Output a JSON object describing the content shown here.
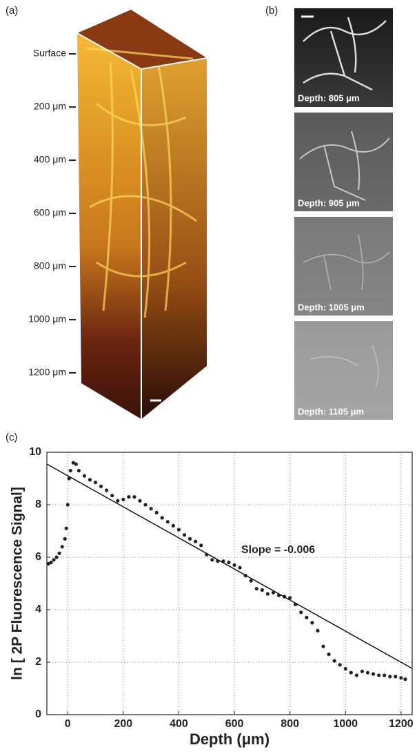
{
  "panel_a": {
    "label": "(a)",
    "depth_labels": [
      "Surface",
      "200 μm",
      "400 μm",
      "600 μm",
      "800 μm",
      "1000 μm",
      "1200 μm"
    ]
  },
  "panel_b": {
    "label": "(b)",
    "captions": [
      "Depth: 805 μm",
      "Depth: 905 μm",
      "Depth: 1005 μm",
      "Depth: 1105 μm"
    ]
  },
  "panel_c": {
    "label": "(c)"
  },
  "chart_data": {
    "type": "scatter",
    "x_label": "Depth (μm)",
    "y_label": "ln [ 2P Fluorescence Signal]",
    "annotation": "Slope = -0.006",
    "color": "#222222",
    "x": [
      -70,
      -60,
      -50,
      -40,
      -30,
      -20,
      -10,
      -5,
      0,
      5,
      10,
      20,
      30,
      40,
      60,
      80,
      100,
      120,
      140,
      160,
      180,
      200,
      220,
      240,
      260,
      280,
      300,
      320,
      340,
      360,
      380,
      400,
      420,
      440,
      460,
      480,
      500,
      520,
      540,
      560,
      580,
      600,
      620,
      640,
      660,
      680,
      700,
      720,
      740,
      760,
      780,
      800,
      820,
      840,
      860,
      880,
      900,
      920,
      940,
      960,
      980,
      1000,
      1020,
      1040,
      1060,
      1080,
      1100,
      1120,
      1140,
      1160,
      1180,
      1200,
      1215
    ],
    "values": [
      5.75,
      5.8,
      5.9,
      6.0,
      6.15,
      6.4,
      6.7,
      7.1,
      8.0,
      9.0,
      9.3,
      9.6,
      9.55,
      9.3,
      9.1,
      8.95,
      8.85,
      8.7,
      8.55,
      8.35,
      8.15,
      8.2,
      8.3,
      8.3,
      8.15,
      8.0,
      7.85,
      7.7,
      7.5,
      7.35,
      7.2,
      7.05,
      6.85,
      6.7,
      6.6,
      6.45,
      6.1,
      5.9,
      5.85,
      5.85,
      5.8,
      5.7,
      5.6,
      5.3,
      5.1,
      4.8,
      4.75,
      4.6,
      4.65,
      4.55,
      4.5,
      4.45,
      4.2,
      3.9,
      3.7,
      3.5,
      3.2,
      2.6,
      2.3,
      2.05,
      1.9,
      1.75,
      1.6,
      1.5,
      1.65,
      1.6,
      1.55,
      1.5,
      1.5,
      1.45,
      1.45,
      1.4,
      1.35
    ],
    "fit_line": {
      "x": [
        -75,
        1240
      ],
      "values": [
        9.55,
        1.76
      ],
      "color": "#111111"
    },
    "xlim": [
      -75,
      1240
    ],
    "ylim": [
      0,
      10
    ],
    "xticks": [
      0,
      200,
      400,
      600,
      800,
      1000,
      1200
    ],
    "yticks": [
      0,
      2,
      4,
      6,
      8,
      10
    ],
    "grid": true
  }
}
